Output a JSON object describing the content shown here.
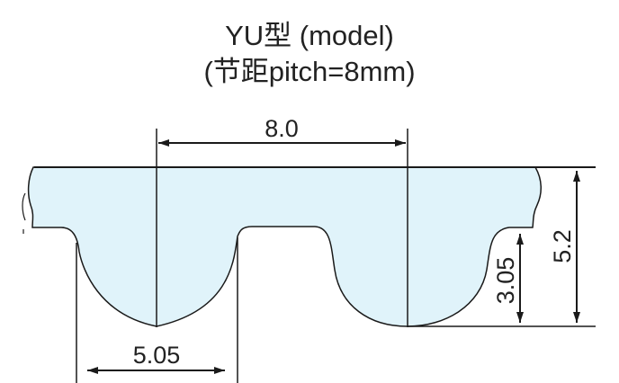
{
  "title": {
    "line1": "YU型 (model)",
    "line2": "(节距pitch=8mm)"
  },
  "dimensions": {
    "pitch": "8.0",
    "total_height": "5.2",
    "tooth_height": "3.05",
    "tooth_width": "5.05"
  },
  "colors": {
    "belt_fill": "#e0f3fa",
    "stroke": "#1a1a1a"
  }
}
